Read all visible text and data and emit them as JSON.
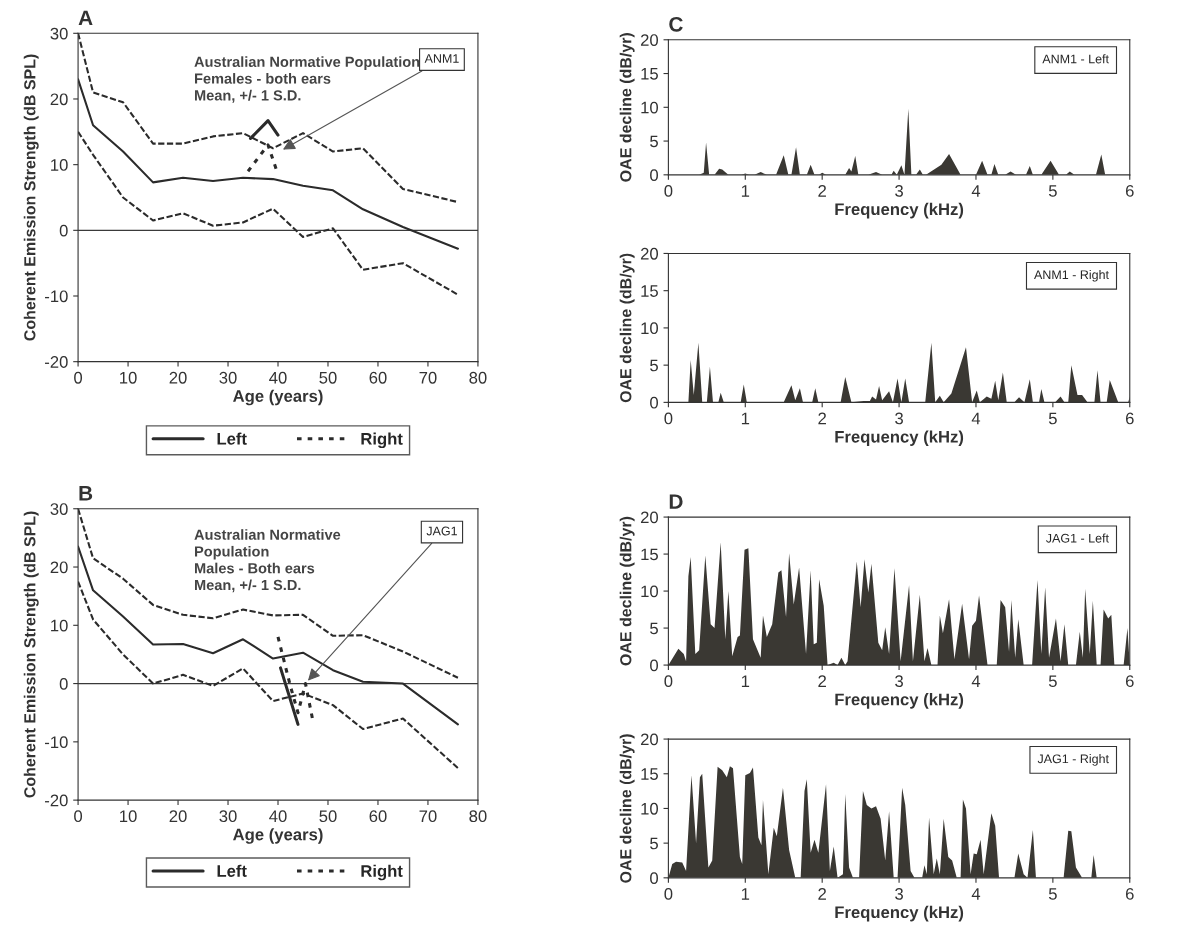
{
  "chart_data": [
    {
      "type": "line",
      "title": "A",
      "xlabel": "Age (years)",
      "ylabel": "Coherent Emission Strength (dB SPL)",
      "xlim": [
        0,
        80
      ],
      "xticks": [
        0,
        10,
        20,
        30,
        40,
        50,
        60,
        70,
        80
      ],
      "ylim": [
        -20,
        30
      ],
      "yticks": [
        -20,
        -10,
        0,
        10,
        20,
        30
      ],
      "legend": "bottom",
      "ref_lines": [
        {
          "axis": "y",
          "value": 0,
          "color": "#3a3a3a"
        }
      ],
      "annotations": [
        "Australian Normative Population\nFemales - both ears\nMean, +/- 1 S.D.",
        {
          "text": "ANM1",
          "x": 41,
          "y": 12.3
        }
      ],
      "series": [
        {
          "color": "#2b2b2b",
          "line_style": "solid",
          "x": [
            0,
            3,
            9,
            15,
            21,
            27,
            33,
            39,
            45,
            51,
            57,
            65,
            76
          ],
          "values": [
            23,
            16,
            12,
            7.3,
            8,
            7.5,
            8,
            7.8,
            6.8,
            6.1,
            3.2,
            0.5,
            -2.8
          ]
        },
        {
          "color": "#2b2b2b",
          "line_style": "dashed",
          "x": [
            0,
            3,
            9,
            15,
            21,
            27,
            33,
            39,
            45,
            51,
            57,
            65,
            76
          ],
          "values": [
            30,
            21,
            19.5,
            13.2,
            13.2,
            14.3,
            14.8,
            12.5,
            14.8,
            12,
            12.5,
            6.3,
            4.3
          ]
        },
        {
          "color": "#2b2b2b",
          "line_style": "dashed",
          "x": [
            0,
            3,
            9,
            15,
            21,
            27,
            33,
            39,
            45,
            51,
            57,
            65,
            76
          ],
          "values": [
            15,
            11.5,
            5,
            1.5,
            2.6,
            0.7,
            1.2,
            3.3,
            -1,
            0.3,
            -6,
            -5,
            -9.8
          ]
        },
        {
          "name": "Left",
          "color": "#2b2b2b",
          "line_style": "solid",
          "x": [
            34.5,
            38,
            40
          ],
          "values": [
            14,
            16.7,
            14.5
          ]
        },
        {
          "name": "Right",
          "color": "#2b2b2b",
          "line_style": "dotted",
          "x": [
            34,
            38,
            40
          ],
          "values": [
            9,
            13,
            8.5
          ]
        }
      ]
    },
    {
      "type": "line",
      "title": "B",
      "xlabel": "Age (years)",
      "ylabel": "Coherent Emission Strength (dB SPL)",
      "xlim": [
        0,
        80
      ],
      "xticks": [
        0,
        10,
        20,
        30,
        40,
        50,
        60,
        70,
        80
      ],
      "ylim": [
        -20,
        30
      ],
      "yticks": [
        -20,
        -10,
        0,
        10,
        20,
        30
      ],
      "legend": "bottom",
      "ref_lines": [
        {
          "axis": "y",
          "value": 0,
          "color": "#3a3a3a"
        }
      ],
      "annotations": [
        "Australian Normative\nPopulation\nMales - Both ears\nMean, +/- 1 S.D.",
        {
          "text": "JAG1",
          "x": 46,
          "y": 0.5
        }
      ],
      "series": [
        {
          "color": "#2b2b2b",
          "line_style": "solid",
          "x": [
            0,
            3,
            9,
            15,
            21,
            27,
            33,
            39,
            45,
            51,
            57,
            65,
            76
          ],
          "values": [
            23.5,
            16,
            11.5,
            6.7,
            6.8,
            5.2,
            7.6,
            4.3,
            5.3,
            2.3,
            0.3,
            0,
            -7
          ]
        },
        {
          "color": "#2b2b2b",
          "line_style": "dashed",
          "x": [
            0,
            3,
            9,
            15,
            21,
            27,
            33,
            39,
            45,
            51,
            57,
            65,
            76
          ],
          "values": [
            30,
            21.5,
            18,
            13.5,
            11.8,
            11.2,
            12.7,
            11.7,
            11.8,
            8.2,
            8.3,
            5.5,
            1
          ]
        },
        {
          "color": "#2b2b2b",
          "line_style": "dashed",
          "x": [
            0,
            3,
            9,
            15,
            21,
            27,
            33,
            39,
            45,
            51,
            57,
            65,
            76
          ],
          "values": [
            17.5,
            11,
            5,
            0,
            1.5,
            -0.4,
            2.6,
            -3,
            -1.7,
            -3.7,
            -7.8,
            -6,
            -14.5
          ]
        },
        {
          "name": "Left",
          "color": "#2b2b2b",
          "line_style": "solid",
          "x": [
            40.5,
            44
          ],
          "values": [
            2.7,
            -7
          ]
        },
        {
          "name": "Right",
          "color": "#2b2b2b",
          "line_style": "dotted",
          "x": [
            40,
            42.5,
            44,
            45.5,
            47
          ],
          "values": [
            8,
            -0.5,
            -5,
            0,
            -6.5
          ]
        }
      ]
    },
    {
      "type": "area",
      "title": "C",
      "xlabel": "Frequency (kHz)",
      "ylabel": "OAE decline (dB/yr)",
      "xlim": [
        0,
        6
      ],
      "xticks": [
        0,
        1,
        2,
        3,
        4,
        5,
        6
      ],
      "ylim": [
        0,
        20
      ],
      "yticks": [
        0,
        5,
        10,
        15,
        20
      ],
      "annotations": [
        "ANM1 - Left"
      ],
      "series": [
        {
          "color": "#3a3833",
          "x": [
            0,
            0.4,
            0.46,
            0.49,
            0.53,
            0.6,
            0.66,
            0.7,
            0.78,
            0.95,
            1.0,
            1.05,
            1.12,
            1.2,
            1.28,
            1.4,
            1.5,
            1.56,
            1.6,
            1.66,
            1.71,
            1.8,
            1.85,
            1.9,
            1.96,
            2.0,
            2.05,
            2.3,
            2.35,
            2.38,
            2.43,
            2.47,
            2.6,
            2.7,
            2.78,
            2.9,
            2.93,
            2.97,
            3.03,
            3.07,
            3.12,
            3.16,
            3.22,
            3.27,
            3.31,
            3.35,
            3.55,
            3.65,
            3.8,
            4.0,
            4.08,
            4.15,
            4.2,
            4.24,
            4.29,
            4.38,
            4.45,
            4.52,
            4.65,
            4.7,
            4.74,
            4.85,
            4.97,
            5.08,
            5.17,
            5.22,
            5.28,
            5.56,
            5.63,
            5.68,
            6
          ],
          "values": [
            0,
            0,
            0.3,
            4.8,
            0,
            0,
            0.9,
            0.8,
            0,
            0,
            0.2,
            0,
            0,
            0.4,
            0,
            0,
            2.9,
            0,
            0,
            4.1,
            0,
            0,
            1.5,
            0,
            0,
            0.3,
            0,
            0,
            1.0,
            0.5,
            2.8,
            0,
            0,
            0.4,
            0,
            0,
            0.6,
            0,
            1.4,
            0,
            9.8,
            0,
            0,
            0.8,
            0,
            0,
            1.5,
            3.1,
            0,
            0,
            2.1,
            0,
            0,
            1.6,
            0,
            0,
            0.5,
            0,
            0,
            1.3,
            0,
            0,
            2.1,
            0,
            0,
            0.5,
            0,
            0,
            3.0,
            0,
            0
          ]
        }
      ]
    },
    {
      "type": "area",
      "xlabel": "Frequency (kHz)",
      "ylabel": "OAE decline (dB/yr)",
      "xlim": [
        0,
        6
      ],
      "xticks": [
        0,
        1,
        2,
        3,
        4,
        5,
        6
      ],
      "ylim": [
        0,
        20
      ],
      "yticks": [
        0,
        5,
        10,
        15,
        20
      ],
      "annotations": [
        "ANM1 - Right"
      ],
      "series": [
        {
          "color": "#3a3833",
          "x": [
            0,
            0.26,
            0.29,
            0.33,
            0.39,
            0.44,
            0.5,
            0.54,
            0.58,
            0.65,
            0.68,
            0.72,
            0.94,
            0.98,
            1.02,
            1.5,
            1.6,
            1.65,
            1.71,
            1.75,
            1.87,
            1.91,
            1.95,
            2.24,
            2.3,
            2.38,
            2.54,
            2.62,
            2.65,
            2.7,
            2.74,
            2.78,
            2.87,
            2.92,
            2.98,
            3.03,
            3.08,
            3.13,
            3.34,
            3.42,
            3.47,
            3.53,
            3.58,
            3.68,
            3.87,
            3.95,
            4.01,
            4.05,
            4.14,
            4.2,
            4.25,
            4.29,
            4.35,
            4.4,
            4.5,
            4.56,
            4.63,
            4.7,
            4.74,
            4.82,
            4.85,
            4.89,
            5.03,
            5.1,
            5.15,
            5.2,
            5.24,
            5.32,
            5.38,
            5.45,
            5.54,
            5.58,
            5.62,
            5.7,
            5.74,
            5.85,
            5.98,
            6
          ],
          "values": [
            0,
            0,
            5.7,
            1.0,
            8.0,
            0,
            0,
            4.8,
            0,
            0,
            1.3,
            0,
            0,
            2.4,
            0,
            0,
            2.3,
            0.3,
            1.9,
            0,
            0,
            1.9,
            0,
            0,
            3.4,
            0,
            0.2,
            0.2,
            0.8,
            0.4,
            2.2,
            0.3,
            1.5,
            0,
            3.2,
            0,
            3.2,
            0,
            0,
            8.0,
            0,
            0.9,
            0,
            1.2,
            7.4,
            0,
            1.6,
            0,
            0.8,
            0.5,
            2.9,
            0.3,
            4.0,
            0,
            0,
            0.7,
            0,
            3.1,
            0,
            0,
            1.8,
            0,
            0,
            0.8,
            0,
            0,
            5.0,
            1.0,
            1.0,
            0,
            0,
            4.3,
            0,
            0,
            3.0,
            0,
            0,
            0.8
          ]
        }
      ]
    },
    {
      "type": "area",
      "title": "D",
      "xlabel": "Frequency (kHz)",
      "ylabel": "OAE decline (dB/yr)",
      "xlim": [
        0,
        6
      ],
      "xticks": [
        0,
        1,
        2,
        3,
        4,
        5,
        6
      ],
      "ylim": [
        0,
        20
      ],
      "yticks": [
        0,
        5,
        10,
        15,
        20
      ],
      "annotations": [
        "JAG1 - Left"
      ],
      "series": [
        {
          "color": "#3a3833",
          "x": [
            0,
            0.13,
            0.2,
            0.23,
            0.26,
            0.29,
            0.35,
            0.4,
            0.48,
            0.55,
            0.6,
            0.68,
            0.74,
            0.78,
            0.83,
            0.9,
            0.93,
            0.99,
            1.04,
            1.1,
            1.2,
            1.23,
            1.28,
            1.35,
            1.43,
            1.47,
            1.53,
            1.57,
            1.63,
            1.7,
            1.79,
            1.85,
            1.89,
            1.93,
            1.96,
            2.02,
            2.07,
            2.15,
            2.2,
            2.25,
            2.3,
            2.33,
            2.45,
            2.5,
            2.55,
            2.6,
            2.64,
            2.73,
            2.78,
            2.82,
            2.87,
            2.94,
            3.02,
            3.13,
            3.18,
            3.27,
            3.33,
            3.37,
            3.42,
            3.5,
            3.53,
            3.57,
            3.65,
            3.72,
            3.82,
            3.91,
            3.95,
            4.0,
            4.04,
            4.15,
            4.27,
            4.32,
            4.38,
            4.43,
            4.46,
            4.51,
            4.55,
            4.62,
            4.73,
            4.8,
            4.85,
            4.9,
            4.95,
            5.04,
            5.1,
            5.15,
            5.2,
            5.3,
            5.35,
            5.39,
            5.42,
            5.48,
            5.52,
            5.57,
            5.62,
            5.66,
            5.72,
            5.76,
            5.8,
            5.92,
            5.97,
            6
          ],
          "values": [
            0,
            2.2,
            1.5,
            0.5,
            12,
            14.6,
            1.5,
            2.0,
            14.8,
            5.5,
            5.0,
            16.6,
            3.5,
            10.0,
            1.2,
            3.8,
            4.0,
            15.6,
            15.8,
            3.5,
            1.0,
            6.7,
            3.8,
            5.5,
            12.5,
            12.8,
            6.5,
            15.1,
            8.2,
            13.2,
            1.5,
            12.8,
            2.8,
            3.0,
            11.6,
            8.0,
            0,
            0.3,
            0,
            1.0,
            0,
            0.5,
            14.0,
            7.8,
            14.3,
            9.8,
            13.7,
            3.0,
            2.0,
            5.1,
            1.5,
            13.1,
            0.5,
            10.8,
            0.5,
            9.5,
            0.5,
            2.3,
            0,
            0,
            6.7,
            4.3,
            8.9,
            0.8,
            8.3,
            0.8,
            5.3,
            6.0,
            9.4,
            0,
            0,
            8.8,
            7.8,
            1.8,
            8.8,
            1.0,
            6.2,
            0,
            0,
            11.5,
            1.5,
            10.5,
            1.0,
            6.3,
            0.5,
            5.5,
            0,
            0,
            4.5,
            1.0,
            10.3,
            1.5,
            8.7,
            0,
            0,
            7.5,
            6.3,
            6.8,
            0,
            0,
            5.0,
            0
          ]
        }
      ]
    },
    {
      "type": "area",
      "xlabel": "Frequency (kHz)",
      "ylabel": "OAE decline (dB/yr)",
      "xlim": [
        0,
        6
      ],
      "xticks": [
        0,
        1,
        2,
        3,
        4,
        5,
        6
      ],
      "ylim": [
        0,
        20
      ],
      "yticks": [
        0,
        5,
        10,
        15,
        20
      ],
      "annotations": [
        "JAG1 - Right"
      ],
      "series": [
        {
          "color": "#3a3833",
          "x": [
            0,
            0.05,
            0.1,
            0.18,
            0.23,
            0.3,
            0.36,
            0.41,
            0.44,
            0.52,
            0.57,
            0.64,
            0.7,
            0.76,
            0.8,
            0.84,
            0.93,
            0.96,
            1.0,
            1.06,
            1.1,
            1.17,
            1.21,
            1.23,
            1.3,
            1.37,
            1.41,
            1.49,
            1.57,
            1.65,
            1.72,
            1.77,
            1.8,
            1.85,
            1.9,
            1.95,
            2.05,
            2.1,
            2.15,
            2.2,
            2.27,
            2.3,
            2.35,
            2.4,
            2.48,
            2.53,
            2.58,
            2.64,
            2.7,
            2.76,
            2.82,
            2.87,
            2.93,
            2.98,
            3.04,
            3.08,
            3.15,
            3.2,
            3.3,
            3.33,
            3.36,
            3.39,
            3.45,
            3.49,
            3.53,
            3.58,
            3.64,
            3.69,
            3.75,
            3.8,
            3.83,
            3.87,
            3.93,
            3.97,
            4.01,
            4.06,
            4.1,
            4.2,
            4.25,
            4.3,
            4.5,
            4.55,
            4.62,
            4.67,
            4.74,
            4.78,
            5.14,
            5.2,
            5.24,
            5.3,
            5.38,
            5.5,
            5.53,
            5.57,
            6
          ],
          "values": [
            0,
            2.0,
            2.3,
            2.2,
            1.0,
            14.8,
            5.0,
            14.5,
            15.0,
            1.5,
            2.5,
            16.0,
            15.5,
            14.5,
            16.1,
            15.8,
            3.0,
            2.0,
            14.8,
            15.1,
            15.9,
            5.8,
            4.7,
            11.2,
            0.5,
            7.2,
            6.0,
            13.0,
            4.0,
            0,
            0,
            12.5,
            14.2,
            3.6,
            5.5,
            3.6,
            13.5,
            1.0,
            4.5,
            0,
            0.5,
            12.1,
            1.5,
            0,
            0,
            12.5,
            10.5,
            10.0,
            10.3,
            8.5,
            2.5,
            9.6,
            0,
            0,
            13.0,
            10.5,
            1.0,
            0,
            0,
            1.8,
            0.5,
            8.7,
            0.5,
            2.8,
            0.5,
            8.5,
            3.0,
            2.5,
            0,
            0,
            11.3,
            10.0,
            0.5,
            3.5,
            3.4,
            5.5,
            0.5,
            9.3,
            7.5,
            0,
            0,
            3.5,
            0.5,
            0,
            6.9,
            0,
            0,
            6.8,
            6.7,
            1.5,
            0,
            0,
            3.3,
            0,
            0
          ]
        }
      ]
    }
  ]
}
